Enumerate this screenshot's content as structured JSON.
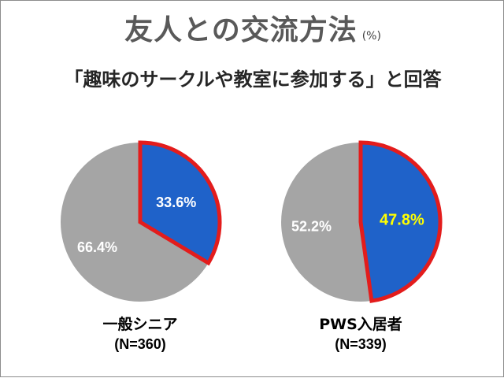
{
  "header": {
    "title": "友人との交流方法",
    "unit": "(%)",
    "subtitle": "「趣味のサークルや教室に参加する」と回答"
  },
  "colors": {
    "highlight_fill": "#1f62c9",
    "other_fill": "#a5a5a5",
    "highlight_border": "#e31c1c",
    "highlight_text_yellow": "#ffff00"
  },
  "chart_data": [
    {
      "type": "pie",
      "name": "一般シニア",
      "n_label": "(N=360)",
      "slices": [
        {
          "label": "33.6%",
          "value": 33.6,
          "color": "#1f62c9",
          "highlighted": true
        },
        {
          "label": "66.4%",
          "value": 66.4,
          "color": "#a5a5a5",
          "highlighted": false
        }
      ]
    },
    {
      "type": "pie",
      "name": "PWS入居者",
      "n_label": "(N=339)",
      "slices": [
        {
          "label": "47.8%",
          "value": 47.8,
          "color": "#1f62c9",
          "highlighted": true
        },
        {
          "label": "52.2%",
          "value": 52.2,
          "color": "#a5a5a5",
          "highlighted": false
        }
      ]
    }
  ]
}
